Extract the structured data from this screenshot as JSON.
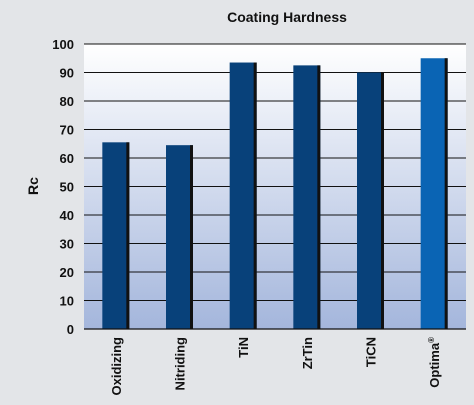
{
  "chart_data": {
    "type": "bar",
    "title": "Coating Hardness",
    "xlabel": "",
    "ylabel": "Rc",
    "ylim": [
      0,
      100
    ],
    "yticks": [
      "0",
      "10",
      "20",
      "30",
      "40",
      "50",
      "60",
      "70",
      "80",
      "90",
      "100"
    ],
    "categories": [
      "Oxidizing",
      "Nitriding",
      "TiN",
      "ZrTin",
      "TiCN",
      "Optima"
    ],
    "category_superscripts": [
      "",
      "",
      "",
      "",
      "",
      "®"
    ],
    "values": [
      65.5,
      64.5,
      93.5,
      92.5,
      90,
      95
    ],
    "grid": true,
    "colors": {
      "bar": "#08417a",
      "bar_highlight": "#0a64b4",
      "bar_shadow": "#111111",
      "plot_top": "#ffffff",
      "plot_bottom": "#a4b6dc",
      "background": "#e3e5e8"
    }
  }
}
